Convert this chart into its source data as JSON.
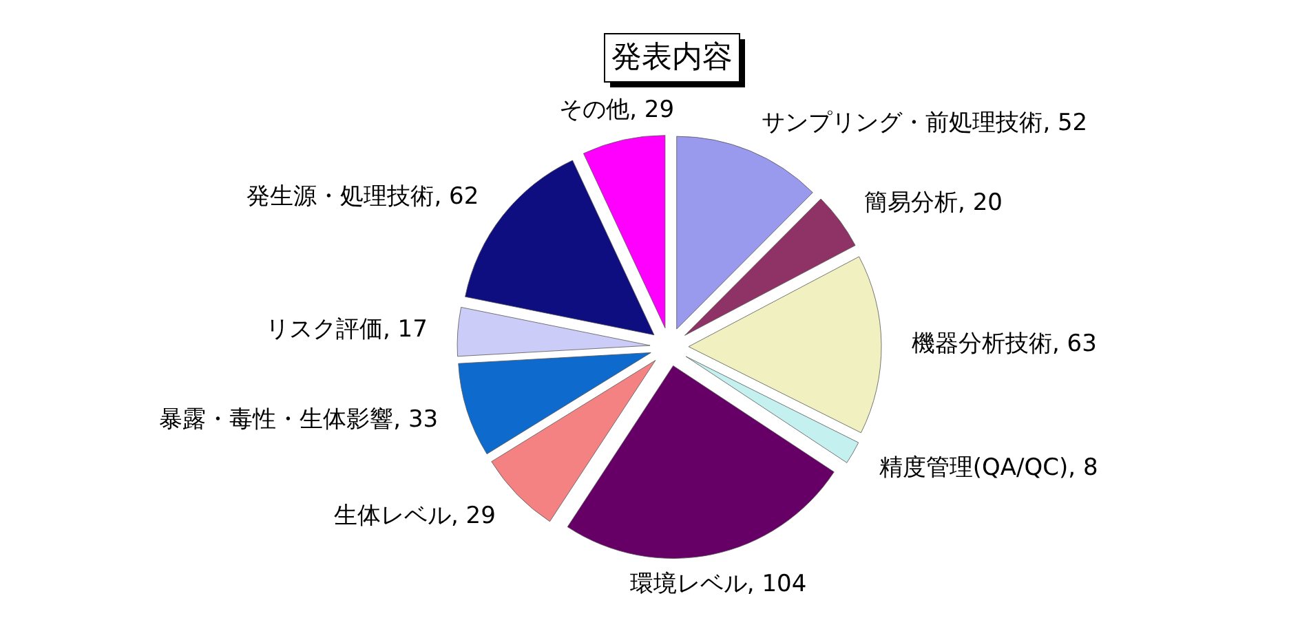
{
  "chart_data": {
    "type": "pie",
    "title": "発表内容",
    "categories": [
      "サンプリング・前処理技術",
      "簡易分析",
      "機器分析技術",
      "精度管理(QA/QC)",
      "環境レベル",
      "生体レベル",
      "暴露・毒性・生体影響",
      "リスク評価",
      "発生源・処理技術",
      "その他"
    ],
    "values": [
      52,
      20,
      63,
      8,
      104,
      29,
      33,
      17,
      62,
      29
    ],
    "value_labels": [
      ", 52",
      ", 20",
      ", 63",
      ", 8",
      ", 104",
      ", 29",
      ", 33",
      ", 17",
      ", 62",
      ", 29"
    ],
    "colors": [
      "#9999ee",
      "#8f3366",
      "#f0f0c0",
      "#c4f0f0",
      "#660066",
      "#f48282",
      "#0e6acc",
      "#ccccf8",
      "#0e0e80",
      "#ff00ff"
    ]
  }
}
